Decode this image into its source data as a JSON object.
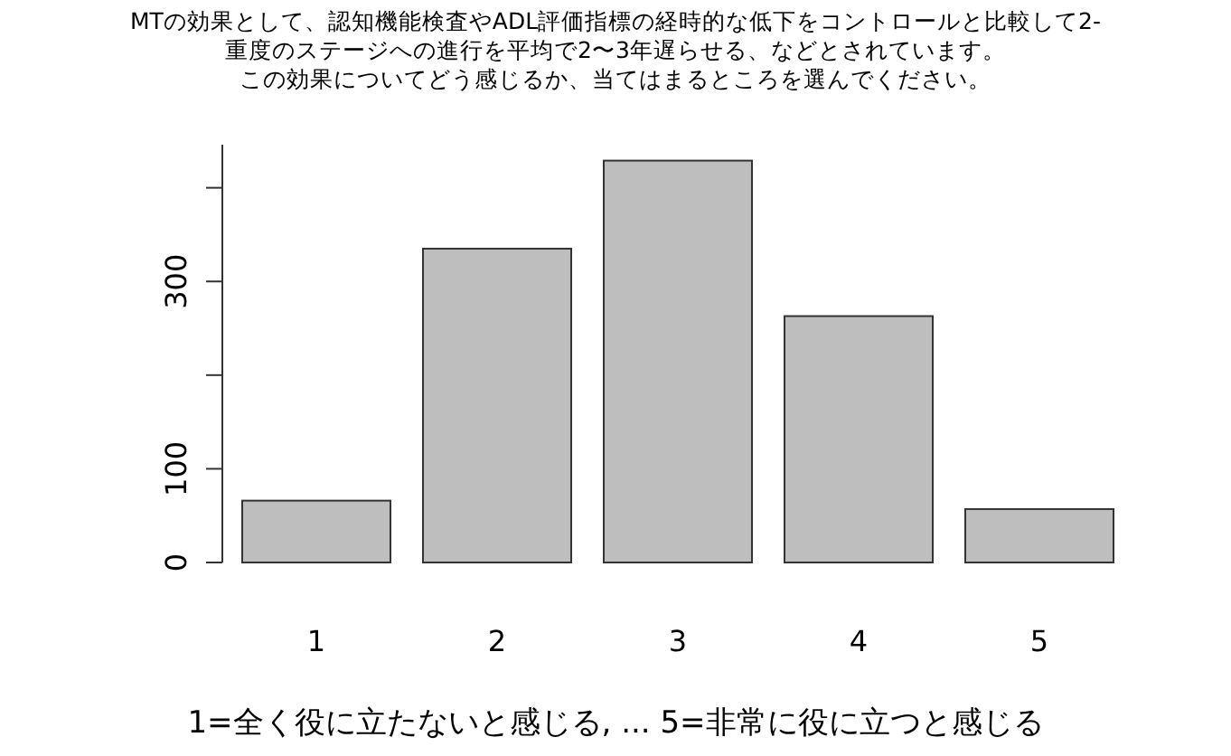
{
  "chart_data": {
    "type": "bar",
    "title": "MTの効果として、認知機能検査やADL評価指標の経時的な低下をコントロールと比較して2-",
    "subtitle": "重度のステージへの進行を平均で2〜3年遅らせる、などとされています。",
    "annotations": [
      "この効果についてどう感じるか、当てはまるところを選んでください。"
    ],
    "xlabel": "1=全く役に立たないと感じる, ... 5=非常に役に立つと感じる",
    "categories": [
      "1",
      "2",
      "3",
      "4",
      "5"
    ],
    "values": [
      66,
      335,
      429,
      263,
      57
    ],
    "color": "#bebebe",
    "ylim": [
      0,
      446
    ],
    "yticks": [
      0,
      100,
      {
        "value": 200,
        "label": null
      },
      300,
      {
        "value": 400,
        "label": null
      }
    ],
    "grid": false
  }
}
